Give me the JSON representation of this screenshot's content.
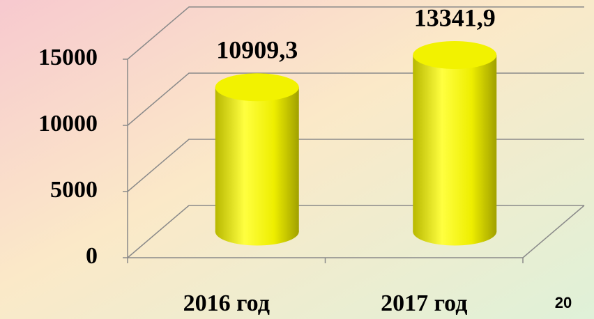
{
  "chart_data": {
    "type": "bar3d",
    "categories": [
      "2016 год",
      "2017 год"
    ],
    "values": [
      10909.3,
      13341.9
    ],
    "value_labels": [
      "10909,3",
      "13341,9"
    ],
    "color": "#f2f200",
    "ylim": [
      0,
      15000
    ],
    "yticks": [
      0,
      5000,
      10000,
      15000
    ],
    "grid": true
  },
  "page_number": "20"
}
